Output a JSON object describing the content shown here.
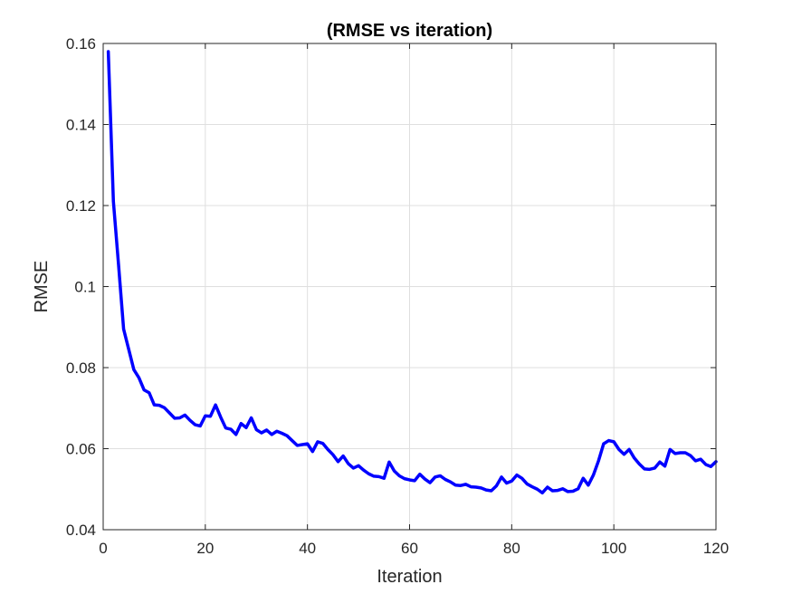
{
  "chart_data": {
    "type": "line",
    "title": "(RMSE vs iteration)",
    "xlabel": "Iteration",
    "ylabel": "RMSE",
    "xlim": [
      0,
      120
    ],
    "ylim": [
      0.04,
      0.16
    ],
    "xticks": [
      0,
      20,
      40,
      60,
      80,
      100,
      120
    ],
    "xtick_labels": [
      "0",
      "20",
      "40",
      "60",
      "80",
      "100",
      "120"
    ],
    "yticks": [
      0.04,
      0.06,
      0.08,
      0.1,
      0.12,
      0.14,
      0.16
    ],
    "ytick_labels": [
      "0.04",
      "0.06",
      "0.08",
      "0.1",
      "0.12",
      "0.14",
      "0.16"
    ],
    "grid": true,
    "series": [
      {
        "color": "#0000ff",
        "x": [
          1,
          2,
          3,
          4,
          5,
          6,
          7,
          8,
          9,
          10,
          11,
          12,
          13,
          14,
          15,
          16,
          17,
          18,
          19,
          20,
          21,
          22,
          23,
          24,
          25,
          26,
          27,
          28,
          29,
          30,
          31,
          32,
          33,
          34,
          35,
          36,
          37,
          38,
          39,
          40,
          41,
          42,
          43,
          44,
          45,
          46,
          47,
          48,
          49,
          50,
          51,
          52,
          53,
          54,
          55,
          56,
          57,
          58,
          59,
          60,
          61,
          62,
          63,
          64,
          65,
          66,
          67,
          68,
          69,
          70,
          71,
          72,
          73,
          74,
          75,
          76,
          77,
          78,
          79,
          80,
          81,
          82,
          83,
          84,
          85,
          86,
          87,
          88,
          89,
          90,
          91,
          92,
          93,
          94,
          95,
          96,
          97,
          98,
          99,
          100,
          101,
          102,
          103,
          104,
          105,
          106,
          107,
          108,
          109,
          110,
          111,
          112,
          113,
          114,
          115,
          116,
          117,
          118,
          119,
          120
        ],
        "values": [
          0.158,
          0.121,
          0.1055,
          0.0895,
          0.0845,
          0.0795,
          0.0775,
          0.0745,
          0.0738,
          0.0708,
          0.0707,
          0.0701,
          0.0688,
          0.0675,
          0.0676,
          0.0683,
          0.067,
          0.0659,
          0.0656,
          0.0681,
          0.068,
          0.0708,
          0.0678,
          0.0651,
          0.0648,
          0.0635,
          0.0662,
          0.0652,
          0.0676,
          0.0647,
          0.0639,
          0.0646,
          0.0635,
          0.0643,
          0.0638,
          0.0632,
          0.062,
          0.0608,
          0.061,
          0.0612,
          0.0593,
          0.0617,
          0.0613,
          0.0598,
          0.0585,
          0.0568,
          0.0582,
          0.0563,
          0.0552,
          0.0558,
          0.0547,
          0.0538,
          0.0532,
          0.0531,
          0.0527,
          0.0567,
          0.0545,
          0.0533,
          0.0526,
          0.0523,
          0.0521,
          0.0537,
          0.0525,
          0.0516,
          0.053,
          0.0533,
          0.0524,
          0.0518,
          0.051,
          0.0509,
          0.0512,
          0.0506,
          0.0505,
          0.0503,
          0.0498,
          0.0496,
          0.0508,
          0.053,
          0.0515,
          0.052,
          0.0535,
          0.0527,
          0.0513,
          0.0506,
          0.05,
          0.0491,
          0.0505,
          0.0496,
          0.0497,
          0.0501,
          0.0494,
          0.0495,
          0.0501,
          0.0527,
          0.051,
          0.0535,
          0.057,
          0.0612,
          0.062,
          0.0617,
          0.0598,
          0.0586,
          0.0598,
          0.0577,
          0.0562,
          0.055,
          0.0549,
          0.0552,
          0.0567,
          0.0557,
          0.0598,
          0.0588,
          0.059,
          0.059,
          0.0583,
          0.057,
          0.0574,
          0.0561,
          0.0556,
          0.0568
        ]
      }
    ]
  }
}
